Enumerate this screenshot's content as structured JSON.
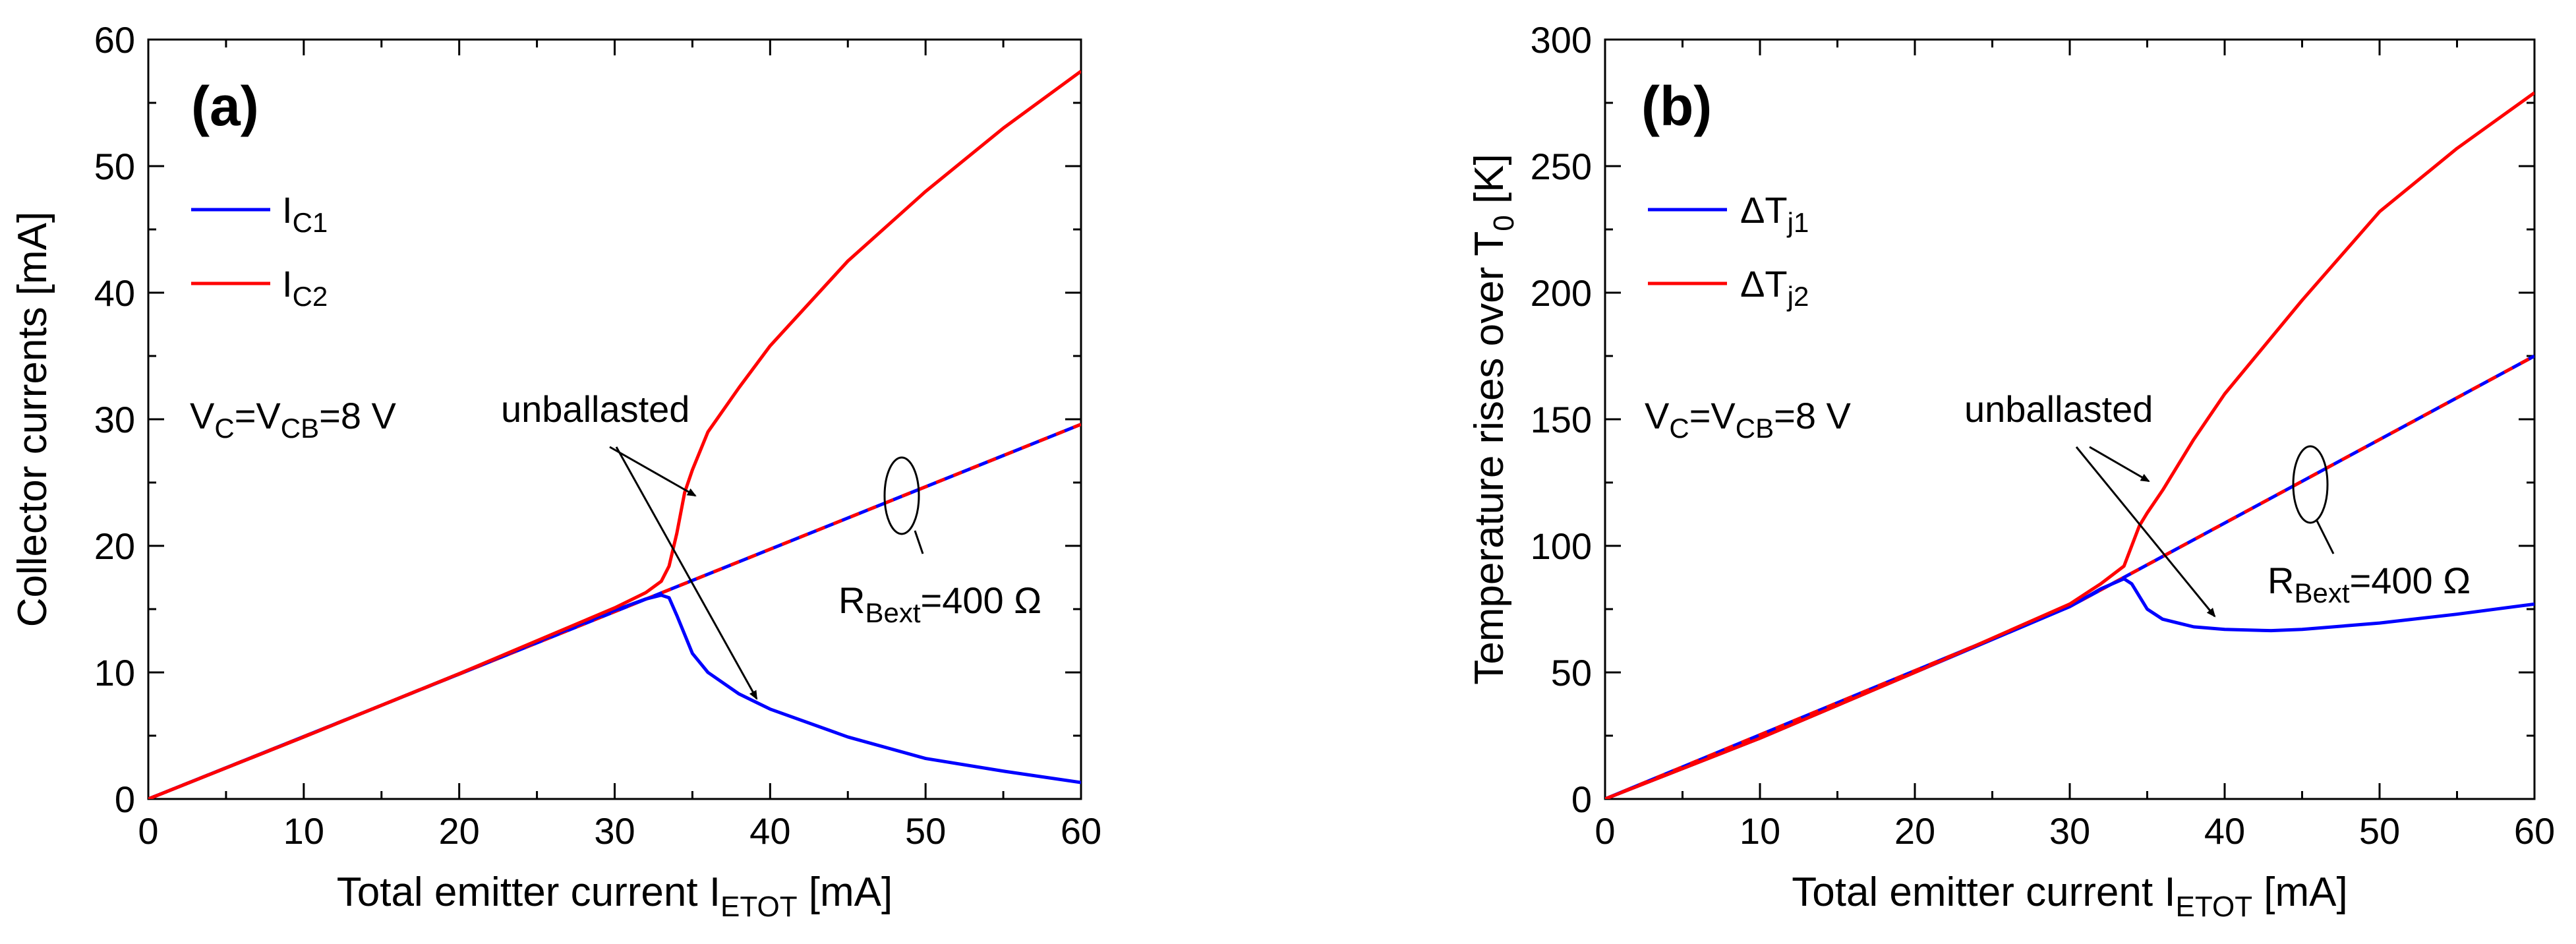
{
  "colors": {
    "series1": "#0000ff",
    "series2": "#ff0000",
    "axis": "#000000"
  },
  "chart_data": [
    {
      "type": "line",
      "panel_tag": "(a)",
      "xlabel": {
        "main": "Total emitter current I",
        "sub": "ETOT",
        "tail": " [mA]"
      },
      "ylabel": {
        "main": "Collector currents [mA]",
        "sub": "",
        "tail": ""
      },
      "xlim": [
        0,
        60
      ],
      "ylim": [
        0,
        60
      ],
      "xticks": [
        "0",
        "10",
        "20",
        "30",
        "40",
        "50",
        "60"
      ],
      "yticks": [
        "0",
        "10",
        "20",
        "30",
        "40",
        "50",
        "60"
      ],
      "grid": false,
      "legend_position": "top-left",
      "series": [
        {
          "name": {
            "main": "I",
            "sub": "C1"
          },
          "x": [
            0,
            10,
            20,
            30,
            32,
            33,
            33.5,
            34,
            35,
            36,
            38,
            40,
            45,
            50,
            55,
            60
          ],
          "y": [
            0,
            4.9,
            9.9,
            14.9,
            15.8,
            16.1,
            15.9,
            14.5,
            11.5,
            10,
            8.3,
            7.1,
            4.9,
            3.2,
            2.2,
            1.3
          ]
        },
        {
          "name": {
            "main": "I",
            "sub": "C2"
          },
          "x": [
            0,
            10,
            20,
            30,
            32,
            33,
            33.5,
            34,
            34.5,
            35,
            36,
            38,
            40,
            45,
            50,
            55,
            60
          ],
          "y": [
            0,
            4.9,
            9.9,
            15.1,
            16.3,
            17.2,
            18.4,
            21,
            24.2,
            26,
            29,
            32.5,
            35.8,
            42.5,
            48,
            53,
            57.5
          ]
        }
      ],
      "ballasted_line": {
        "x": [
          0,
          60
        ],
        "y": [
          0,
          29.6
        ]
      },
      "annotations": {
        "bias": {
          "main": "V",
          "s1": "C",
          "mid": "=V",
          "s2": "CB",
          "tail": "=8 V"
        },
        "unballasted": "unballasted",
        "ballast": {
          "main": "R",
          "sub": "Bext",
          "tail": "=400 Ω"
        }
      }
    },
    {
      "type": "line",
      "panel_tag": "(b)",
      "xlabel": {
        "main": "Total emitter current I",
        "sub": "ETOT",
        "tail": " [mA]"
      },
      "ylabel": {
        "main": "Temperature rises over T",
        "sub": "0",
        "tail": " [K]"
      },
      "xlim": [
        0,
        60
      ],
      "ylim": [
        0,
        300
      ],
      "xticks": [
        "0",
        "10",
        "20",
        "30",
        "40",
        "50",
        "60"
      ],
      "yticks": [
        "0",
        "50",
        "100",
        "150",
        "200",
        "250",
        "300"
      ],
      "grid": false,
      "legend_position": "top-left",
      "series": [
        {
          "name": {
            "main": "ΔT",
            "sub": "j1"
          },
          "x": [
            0,
            10,
            20,
            30,
            32,
            33.5,
            34,
            35,
            36,
            38,
            40,
            43,
            45,
            50,
            55,
            60
          ],
          "y": [
            0,
            24,
            50,
            76,
            83,
            87,
            85,
            75,
            71,
            68,
            67,
            66.5,
            67,
            69.5,
            73,
            77
          ]
        },
        {
          "name": {
            "main": "ΔT",
            "sub": "j2"
          },
          "x": [
            0,
            10,
            20,
            30,
            32,
            33.5,
            34,
            34.5,
            35,
            36,
            38,
            40,
            45,
            50,
            55,
            60
          ],
          "y": [
            0,
            24,
            50,
            77,
            85,
            92,
            100,
            108,
            113,
            122,
            142,
            160,
            197,
            232,
            257,
            279
          ]
        }
      ],
      "ballasted_line": {
        "x": [
          0,
          30,
          60
        ],
        "y": [
          0,
          76,
          175
        ]
      },
      "annotations": {
        "bias": {
          "main": "V",
          "s1": "C",
          "mid": "=V",
          "s2": "CB",
          "tail": "=8 V"
        },
        "unballasted": "unballasted",
        "ballast": {
          "main": "R",
          "sub": "Bext",
          "tail": "=400 Ω"
        }
      }
    }
  ]
}
